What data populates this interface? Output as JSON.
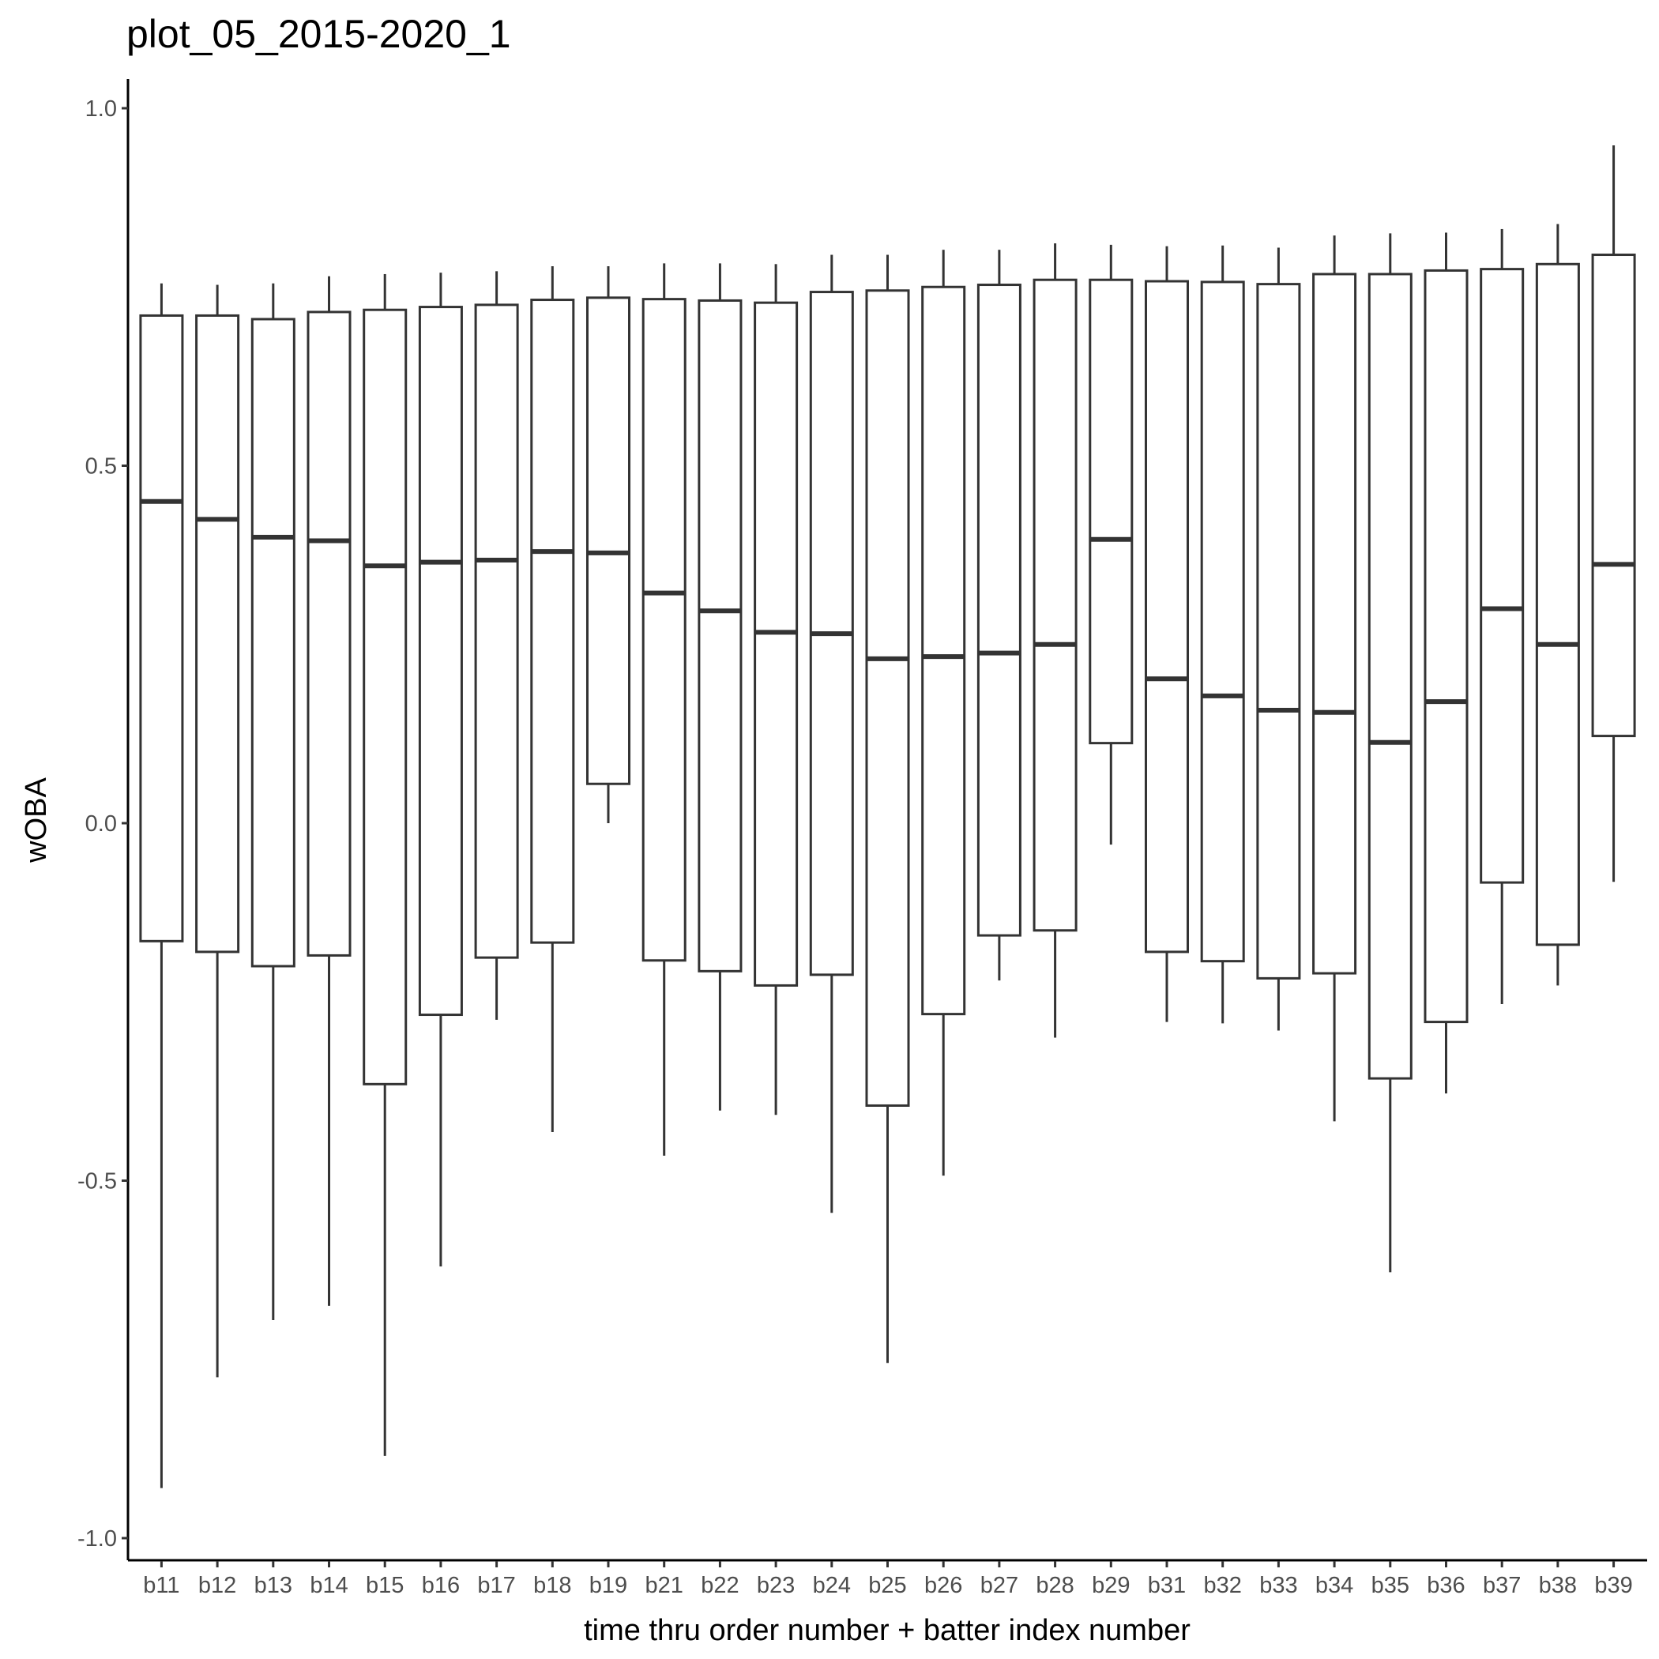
{
  "chart_data": {
    "type": "boxplot",
    "title": "plot_05_2015-2020_1",
    "xlabel": "time thru order number + batter index number",
    "ylabel": "wOBA",
    "ylim": [
      -1.02,
      1.04
    ],
    "yticks": [
      -1.0,
      -0.5,
      0.0,
      0.5,
      1.0
    ],
    "ytick_labels": [
      "-1.0",
      "-0.5",
      "0.0",
      "0.5",
      "1.0"
    ],
    "grid": false,
    "categories": [
      "b11",
      "b12",
      "b13",
      "b14",
      "b15",
      "b16",
      "b17",
      "b18",
      "b19",
      "b21",
      "b22",
      "b23",
      "b24",
      "b25",
      "b26",
      "b27",
      "b28",
      "b29",
      "b31",
      "b32",
      "b33",
      "b34",
      "b35",
      "b36",
      "b37",
      "b38",
      "b39"
    ],
    "boxes": [
      {
        "min": -0.93,
        "q1": -0.165,
        "median": 0.45,
        "q3": 0.71,
        "max": 0.755
      },
      {
        "min": -0.775,
        "q1": -0.18,
        "median": 0.425,
        "q3": 0.71,
        "max": 0.753
      },
      {
        "min": -0.695,
        "q1": -0.2,
        "median": 0.4,
        "q3": 0.705,
        "max": 0.755
      },
      {
        "min": -0.675,
        "q1": -0.185,
        "median": 0.395,
        "q3": 0.715,
        "max": 0.765
      },
      {
        "min": -0.885,
        "q1": -0.365,
        "median": 0.36,
        "q3": 0.718,
        "max": 0.768
      },
      {
        "min": -0.62,
        "q1": -0.268,
        "median": 0.365,
        "q3": 0.722,
        "max": 0.77
      },
      {
        "min": -0.275,
        "q1": -0.188,
        "median": 0.368,
        "q3": 0.725,
        "max": 0.772
      },
      {
        "min": -0.432,
        "q1": -0.167,
        "median": 0.38,
        "q3": 0.732,
        "max": 0.779
      },
      {
        "min": 0.0,
        "q1": 0.055,
        "median": 0.378,
        "q3": 0.735,
        "max": 0.779
      },
      {
        "min": -0.465,
        "q1": -0.192,
        "median": 0.322,
        "q3": 0.733,
        "max": 0.783
      },
      {
        "min": -0.402,
        "q1": -0.207,
        "median": 0.297,
        "q3": 0.731,
        "max": 0.783
      },
      {
        "min": -0.408,
        "q1": -0.227,
        "median": 0.267,
        "q3": 0.728,
        "max": 0.782
      },
      {
        "min": -0.545,
        "q1": -0.212,
        "median": 0.265,
        "q3": 0.743,
        "max": 0.795
      },
      {
        "min": -0.755,
        "q1": -0.395,
        "median": 0.23,
        "q3": 0.745,
        "max": 0.795
      },
      {
        "min": -0.493,
        "q1": -0.267,
        "median": 0.233,
        "q3": 0.75,
        "max": 0.802
      },
      {
        "min": -0.22,
        "q1": -0.157,
        "median": 0.238,
        "q3": 0.753,
        "max": 0.802
      },
      {
        "min": -0.3,
        "q1": -0.15,
        "median": 0.25,
        "q3": 0.76,
        "max": 0.811
      },
      {
        "min": -0.03,
        "q1": 0.112,
        "median": 0.397,
        "q3": 0.76,
        "max": 0.809
      },
      {
        "min": -0.278,
        "q1": -0.18,
        "median": 0.202,
        "q3": 0.758,
        "max": 0.807
      },
      {
        "min": -0.28,
        "q1": -0.193,
        "median": 0.178,
        "q3": 0.757,
        "max": 0.808
      },
      {
        "min": -0.29,
        "q1": -0.217,
        "median": 0.158,
        "q3": 0.754,
        "max": 0.805
      },
      {
        "min": -0.417,
        "q1": -0.21,
        "median": 0.155,
        "q3": 0.768,
        "max": 0.822
      },
      {
        "min": -0.628,
        "q1": -0.357,
        "median": 0.113,
        "q3": 0.768,
        "max": 0.825
      },
      {
        "min": -0.378,
        "q1": -0.278,
        "median": 0.17,
        "q3": 0.773,
        "max": 0.826
      },
      {
        "min": -0.253,
        "q1": -0.083,
        "median": 0.3,
        "q3": 0.775,
        "max": 0.831
      },
      {
        "min": -0.227,
        "q1": -0.17,
        "median": 0.25,
        "q3": 0.782,
        "max": 0.838
      },
      {
        "min": -0.082,
        "q1": 0.122,
        "median": 0.362,
        "q3": 0.795,
        "max": 0.948
      }
    ]
  }
}
